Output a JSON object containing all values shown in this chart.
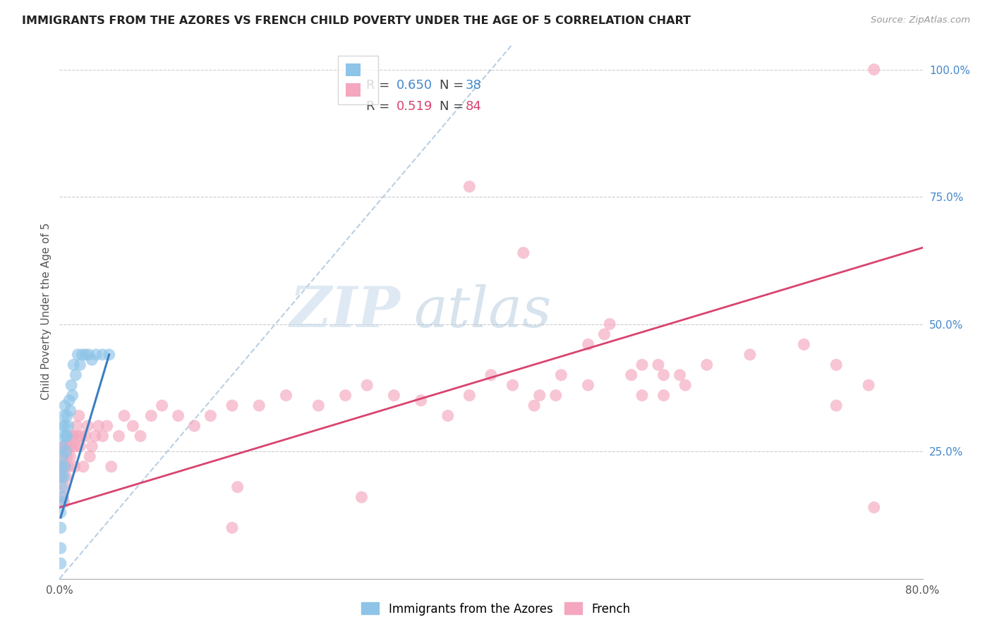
{
  "title": "IMMIGRANTS FROM THE AZORES VS FRENCH CHILD POVERTY UNDER THE AGE OF 5 CORRELATION CHART",
  "source": "Source: ZipAtlas.com",
  "ylabel": "Child Poverty Under the Age of 5",
  "xlim": [
    0.0,
    0.8
  ],
  "ylim": [
    0.0,
    1.05
  ],
  "legend_label1": "R =  0.650   N = 38",
  "legend_label2": "R =  0.519   N = 84",
  "color_azores": "#8ec4e8",
  "color_french": "#f4a7be",
  "color_line_azores": "#3a7fc1",
  "color_line_french": "#d9436e",
  "color_dashed": "#a8c4de",
  "watermark_zip": "ZIP",
  "watermark_atlas": "atlas",
  "azores_x": [
    0.001,
    0.001,
    0.001,
    0.001,
    0.002,
    0.002,
    0.002,
    0.002,
    0.003,
    0.003,
    0.003,
    0.003,
    0.004,
    0.004,
    0.004,
    0.005,
    0.005,
    0.005,
    0.006,
    0.006,
    0.007,
    0.007,
    0.008,
    0.009,
    0.01,
    0.011,
    0.012,
    0.013,
    0.015,
    0.017,
    0.019,
    0.021,
    0.024,
    0.027,
    0.03,
    0.034,
    0.04,
    0.046
  ],
  "azores_y": [
    0.03,
    0.06,
    0.1,
    0.13,
    0.15,
    0.18,
    0.2,
    0.22,
    0.16,
    0.24,
    0.26,
    0.3,
    0.2,
    0.28,
    0.32,
    0.22,
    0.3,
    0.34,
    0.25,
    0.28,
    0.28,
    0.32,
    0.3,
    0.35,
    0.33,
    0.38,
    0.36,
    0.42,
    0.4,
    0.44,
    0.42,
    0.44,
    0.44,
    0.44,
    0.43,
    0.44,
    0.44,
    0.44
  ],
  "french_x": [
    0.001,
    0.002,
    0.003,
    0.003,
    0.004,
    0.004,
    0.005,
    0.005,
    0.006,
    0.006,
    0.007,
    0.008,
    0.009,
    0.01,
    0.011,
    0.012,
    0.013,
    0.014,
    0.015,
    0.016,
    0.017,
    0.018,
    0.019,
    0.02,
    0.022,
    0.024,
    0.026,
    0.028,
    0.03,
    0.033,
    0.036,
    0.04,
    0.044,
    0.048,
    0.055,
    0.06,
    0.068,
    0.075,
    0.085,
    0.095,
    0.11,
    0.125,
    0.14,
    0.16,
    0.185,
    0.21,
    0.24,
    0.265,
    0.285,
    0.31,
    0.335,
    0.36,
    0.38,
    0.4,
    0.42,
    0.445,
    0.465,
    0.49,
    0.505,
    0.53,
    0.555,
    0.575,
    0.38,
    0.43,
    0.44,
    0.46,
    0.49,
    0.51,
    0.16,
    0.165,
    0.28,
    0.54,
    0.56,
    0.54,
    0.56,
    0.58,
    0.6,
    0.64,
    0.69,
    0.72,
    0.72,
    0.75,
    0.755,
    0.755
  ],
  "french_y": [
    0.2,
    0.22,
    0.16,
    0.24,
    0.15,
    0.26,
    0.18,
    0.22,
    0.2,
    0.26,
    0.24,
    0.22,
    0.26,
    0.24,
    0.28,
    0.26,
    0.28,
    0.22,
    0.26,
    0.3,
    0.28,
    0.32,
    0.26,
    0.28,
    0.22,
    0.28,
    0.3,
    0.24,
    0.26,
    0.28,
    0.3,
    0.28,
    0.3,
    0.22,
    0.28,
    0.32,
    0.3,
    0.28,
    0.32,
    0.34,
    0.32,
    0.3,
    0.32,
    0.34,
    0.34,
    0.36,
    0.34,
    0.36,
    0.38,
    0.36,
    0.35,
    0.32,
    0.36,
    0.4,
    0.38,
    0.36,
    0.4,
    0.38,
    0.48,
    0.4,
    0.42,
    0.4,
    0.77,
    0.64,
    0.34,
    0.36,
    0.46,
    0.5,
    0.1,
    0.18,
    0.16,
    0.36,
    0.36,
    0.42,
    0.4,
    0.38,
    0.42,
    0.44,
    0.46,
    0.34,
    0.42,
    0.38,
    0.14,
    1.0
  ],
  "french_line_x": [
    0.0,
    0.8
  ],
  "french_line_y": [
    0.14,
    0.65
  ],
  "azores_line_x": [
    0.001,
    0.046
  ],
  "azores_line_y": [
    0.12,
    0.44
  ],
  "dashed_line_x": [
    0.0,
    0.42
  ],
  "dashed_line_y": [
    0.0,
    1.05
  ]
}
